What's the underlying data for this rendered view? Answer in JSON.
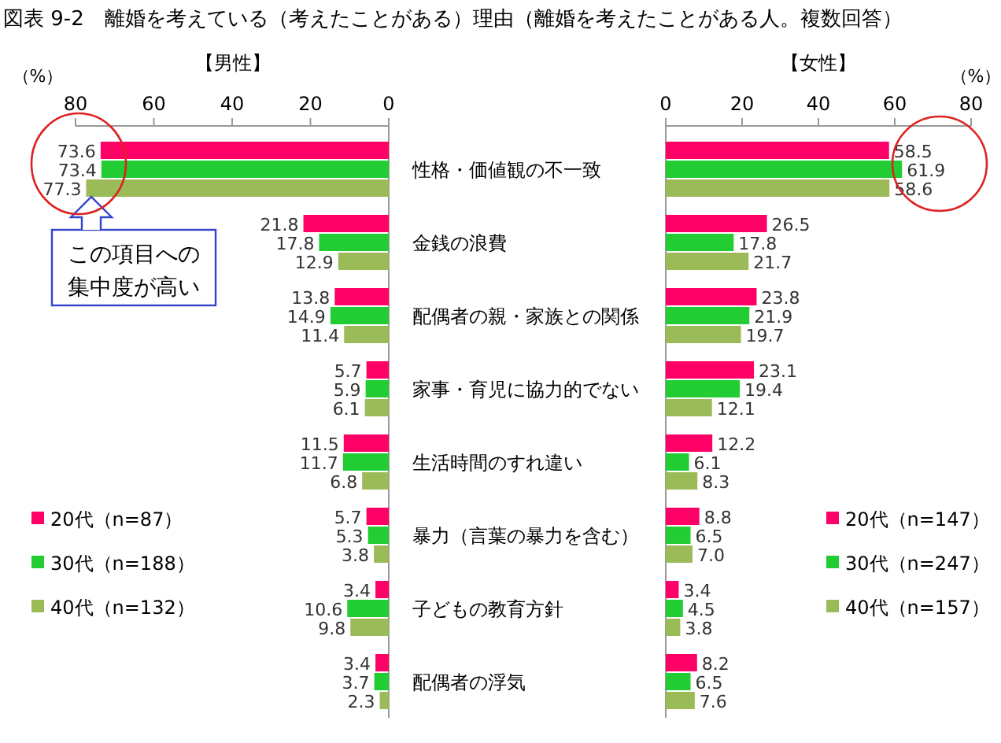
{
  "chart_data": [
    {
      "type": "bar",
      "orientation": "horizontal",
      "title": "図表 9-2　離婚を考えている（考えたことがある）理由（離婚を考えたことがある人。複数回答）",
      "subtitle": "【男性】",
      "xlabel": "（%）",
      "categories": [
        "性格・価値観の不一致",
        "金銭の浪費",
        "配偶者の親・家族との関係",
        "家事・育児に協力的でない",
        "生活時間のすれ違い",
        "暴力（言葉の暴力を含む）",
        "子どもの教育方針",
        "配偶者の浮気"
      ],
      "series": [
        {
          "name": "20代（n=87）",
          "color": "#ff0066",
          "values": [
            73.6,
            21.8,
            13.8,
            5.7,
            11.5,
            5.7,
            3.4,
            3.4
          ],
          "value_labels": [
            "73.6",
            "21.8",
            "13.8",
            "5.7",
            "11.5",
            "5.7",
            "3.4",
            "3.4"
          ]
        },
        {
          "name": "30代（n=188）",
          "color": "#22cc33",
          "values": [
            73.4,
            17.8,
            14.9,
            5.9,
            11.7,
            5.3,
            10.6,
            3.7
          ],
          "value_labels": [
            "73.4",
            "17.8",
            "14.9",
            "5.9",
            "11.7",
            "5.3",
            "10.6",
            "3.7"
          ]
        },
        {
          "name": "40代（n=132）",
          "color": "#9bbb59",
          "values": [
            77.3,
            12.9,
            11.4,
            6.1,
            6.8,
            3.8,
            9.8,
            2.3
          ],
          "value_labels": [
            "77.3",
            "12.9",
            "11.4",
            "6.1",
            "6.8",
            "3.8",
            "9.8",
            "2.3"
          ]
        }
      ],
      "xlim": [
        80,
        0
      ],
      "xticks": [
        80,
        60,
        40,
        20,
        0
      ],
      "legend": "left",
      "annotations": [
        "この項目への集中度が高い"
      ]
    },
    {
      "type": "bar",
      "orientation": "horizontal",
      "title": "【女性】",
      "xlabel": "（%）",
      "series": [
        {
          "name": "20代（n=147）",
          "color": "#ff0066",
          "values": [
            58.5,
            26.5,
            23.8,
            23.1,
            12.2,
            8.8,
            3.4,
            8.2
          ],
          "value_labels": [
            "58.5",
            "26.5",
            "23.8",
            "23.1",
            "12.2",
            "8.8",
            "3.4",
            "8.2"
          ]
        },
        {
          "name": "30代（n=247）",
          "color": "#22cc33",
          "values": [
            61.9,
            17.8,
            21.9,
            19.4,
            6.1,
            6.5,
            4.5,
            6.5
          ],
          "value_labels": [
            "61.9",
            "17.8",
            "21.9",
            "19.4",
            "6.1",
            "6.5",
            "4.5",
            "6.5"
          ]
        },
        {
          "name": "40代（n=157）",
          "color": "#9bbb59",
          "values": [
            58.6,
            21.7,
            19.7,
            12.1,
            8.3,
            7.0,
            3.8,
            7.6
          ],
          "value_labels": [
            "58.6",
            "21.7",
            "19.7",
            "12.1",
            "8.3",
            "7.0",
            "3.8",
            "7.6"
          ]
        }
      ],
      "xlim": [
        0,
        80
      ],
      "xticks": [
        0,
        20,
        40,
        60,
        80
      ],
      "legend": "right",
      "tick_labels": "x"
    }
  ]
}
